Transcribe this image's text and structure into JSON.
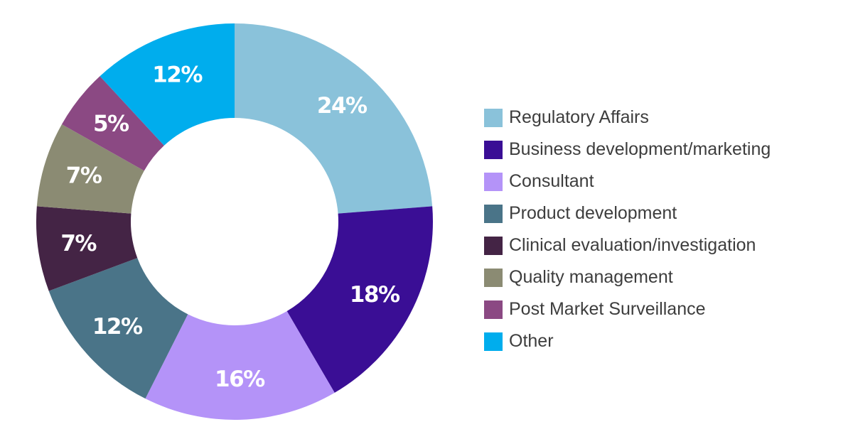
{
  "chart_data": {
    "type": "pie",
    "variant": "donut",
    "title": "",
    "legend_position": "right",
    "start": "top, clockwise",
    "slices": [
      {
        "label": "Regulatory Affairs",
        "value": 24,
        "display": "24%",
        "color": "#8ac2da"
      },
      {
        "label": "Business development/marketing",
        "value": 18,
        "display": "18%",
        "color": "#3a0e95"
      },
      {
        "label": "Consultant",
        "value": 16,
        "display": "16%",
        "color": "#b493f8"
      },
      {
        "label": "Product development",
        "value": 12,
        "display": "12%",
        "color": "#4a7488"
      },
      {
        "label": "Clinical evaluation/investigation",
        "value": 7,
        "display": "7%",
        "color": "#442445"
      },
      {
        "label": "Quality management",
        "value": 7,
        "display": "7%",
        "color": "#8b8b73"
      },
      {
        "label": "Post Market Surveillance",
        "value": 5,
        "display": "5%",
        "color": "#8b4983"
      },
      {
        "label": "Other",
        "value": 12,
        "display": "12%",
        "color": "#00aded"
      }
    ]
  }
}
